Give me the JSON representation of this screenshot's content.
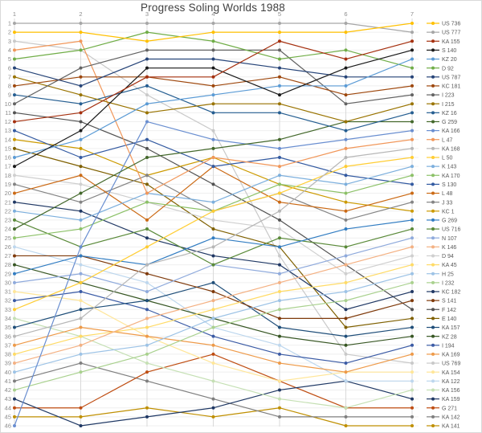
{
  "title": "Progress Soling Worlds 1988",
  "chart_data": {
    "type": "line",
    "subtype": "bump-chart",
    "title": "Progress Soling Worlds 1988",
    "xlabel": "",
    "ylabel": "",
    "x_axis": {
      "position": "top",
      "ticks": [
        1,
        2,
        3,
        4,
        5,
        6,
        7
      ],
      "label_color": "#8c8c8c"
    },
    "y_axis": {
      "min": 1,
      "max": 46,
      "inverted": true,
      "label_color": "#8c8c8c"
    },
    "grid": true,
    "legend_position": "right",
    "legend_text_color": "#595959",
    "series": [
      {
        "label": "US 736",
        "color": "#FFC000",
        "positions": [
          2,
          2,
          3,
          2,
          2,
          2,
          1
        ]
      },
      {
        "label": "US 777",
        "color": "#A6A6A6",
        "positions": [
          1,
          1,
          1,
          1,
          1,
          1,
          2
        ]
      },
      {
        "label": "KA 155",
        "color": "#A5300F",
        "positions": [
          12,
          11,
          7,
          7,
          3,
          5,
          3
        ]
      },
      {
        "label": "S 140",
        "color": "#1A1A1A",
        "positions": [
          17,
          13,
          6,
          6,
          9,
          6,
          4
        ]
      },
      {
        "label": "KZ 20",
        "color": "#5B9BD5",
        "positions": [
          16,
          14,
          10,
          9,
          8,
          8,
          5
        ]
      },
      {
        "label": "D 92",
        "color": "#70AD47",
        "positions": [
          5,
          4,
          2,
          3,
          5,
          4,
          6
        ]
      },
      {
        "label": "US 787",
        "color": "#264478",
        "positions": [
          6,
          8,
          5,
          5,
          6,
          7,
          7
        ]
      },
      {
        "label": "KC 181",
        "color": "#9E480E",
        "positions": [
          8,
          7,
          7,
          8,
          7,
          9,
          8
        ]
      },
      {
        "label": "I 223",
        "color": "#636363",
        "positions": [
          10,
          6,
          4,
          4,
          4,
          10,
          9
        ]
      },
      {
        "label": "I 215",
        "color": "#997300",
        "positions": [
          7,
          9,
          11,
          10,
          10,
          12,
          10
        ]
      },
      {
        "label": "KZ 16",
        "color": "#255E91",
        "positions": [
          9,
          10,
          8,
          11,
          11,
          13,
          11
        ]
      },
      {
        "label": "G 259",
        "color": "#43682B",
        "positions": [
          24,
          20,
          16,
          15,
          14,
          12,
          12
        ]
      },
      {
        "label": "KA 166",
        "color": "#698ED0",
        "positions": [
          46,
          26,
          12,
          14,
          15,
          14,
          13
        ]
      },
      {
        "label": "L 47",
        "color": "#F1975A",
        "positions": [
          4,
          3,
          20,
          16,
          17,
          15,
          14
        ]
      },
      {
        "label": "KA 168",
        "color": "#B7B7B7",
        "positions": [
          36,
          34,
          28,
          26,
          22,
          16,
          15
        ]
      },
      {
        "label": "L 50",
        "color": "#FFCD33",
        "positions": [
          33,
          30,
          26,
          22,
          20,
          17,
          16
        ]
      },
      {
        "label": "K 143",
        "color": "#7CAFDD",
        "positions": [
          22,
          23,
          20,
          21,
          18,
          19,
          17
        ]
      },
      {
        "label": "KA 170",
        "color": "#8CC168",
        "positions": [
          25,
          24,
          21,
          22,
          19,
          20,
          18
        ]
      },
      {
        "label": "S 130",
        "color": "#335AA1",
        "positions": [
          13,
          16,
          14,
          17,
          16,
          18,
          19
        ]
      },
      {
        "label": "L 48",
        "color": "#CB6A15",
        "positions": [
          20,
          18,
          23,
          17,
          21,
          22,
          20
        ]
      },
      {
        "label": "J 33",
        "color": "#848484",
        "positions": [
          19,
          21,
          18,
          22,
          20,
          23,
          21
        ]
      },
      {
        "label": "KC 1",
        "color": "#CC9A00",
        "positions": [
          14,
          15,
          18,
          16,
          19,
          21,
          22
        ]
      },
      {
        "label": "G 269",
        "color": "#327DC2",
        "positions": [
          29,
          27,
          28,
          25,
          26,
          24,
          23
        ]
      },
      {
        "label": "US 716",
        "color": "#5A8A39",
        "positions": [
          23,
          26,
          24,
          28,
          25,
          26,
          24
        ]
      },
      {
        "label": "N 107",
        "color": "#8FAADC",
        "positions": [
          30,
          29,
          31,
          28,
          29,
          27,
          25
        ]
      },
      {
        "label": "K 146",
        "color": "#F4B183",
        "positions": [
          39,
          37,
          34,
          32,
          30,
          28,
          26
        ]
      },
      {
        "label": "D 94",
        "color": "#CFCFCF",
        "positions": [
          18,
          19,
          21,
          23,
          24,
          29,
          27
        ]
      },
      {
        "label": "KA 45",
        "color": "#FFDB66",
        "positions": [
          38,
          36,
          35,
          33,
          31,
          30,
          28
        ]
      },
      {
        "label": "H 25",
        "color": "#9DC3E6",
        "positions": [
          40,
          38,
          37,
          34,
          32,
          31,
          29
        ]
      },
      {
        "label": "I 232",
        "color": "#A9D18E",
        "positions": [
          42,
          40,
          38,
          35,
          33,
          32,
          30
        ]
      },
      {
        "label": "KC 182",
        "color": "#203864",
        "positions": [
          21,
          22,
          25,
          27,
          28,
          33,
          31
        ]
      },
      {
        "label": "S 141",
        "color": "#7F3A0B",
        "positions": [
          27,
          27,
          29,
          31,
          34,
          34,
          32
        ]
      },
      {
        "label": "F 142",
        "color": "#525252",
        "positions": [
          11,
          12,
          15,
          19,
          23,
          28,
          33
        ]
      },
      {
        "label": "E 140",
        "color": "#7F6000",
        "positions": [
          15,
          17,
          19,
          24,
          26,
          35,
          34
        ]
      },
      {
        "label": "KA 157",
        "color": "#1F4E79",
        "positions": [
          35,
          33,
          32,
          30,
          35,
          36,
          35
        ]
      },
      {
        "label": "KZ 28",
        "color": "#375623",
        "positions": [
          28,
          30,
          32,
          34,
          36,
          37,
          36
        ]
      },
      {
        "label": "I 194",
        "color": "#3B5BA5",
        "positions": [
          32,
          31,
          33,
          36,
          38,
          39,
          37
        ]
      },
      {
        "label": "KA 169",
        "color": "#EE9A49",
        "positions": [
          37,
          35,
          36,
          37,
          39,
          40,
          38
        ]
      },
      {
        "label": "US 769",
        "color": "#C9C9C9",
        "positions": [
          3,
          4,
          9,
          13,
          27,
          38,
          39
        ]
      },
      {
        "label": "KA 154",
        "color": "#FFE699",
        "positions": [
          31,
          32,
          36,
          39,
          41,
          40,
          40
        ]
      },
      {
        "label": "KA 122",
        "color": "#BDD7EE",
        "positions": [
          26,
          28,
          30,
          35,
          37,
          41,
          41
        ]
      },
      {
        "label": "KA 156",
        "color": "#C5E0B4",
        "positions": [
          34,
          36,
          39,
          41,
          43,
          44,
          42
        ]
      },
      {
        "label": "KA 159",
        "color": "#1F3864",
        "positions": [
          43,
          46,
          45,
          44,
          42,
          41,
          43
        ]
      },
      {
        "label": "G 271",
        "color": "#BF4D12",
        "positions": [
          44,
          44,
          40,
          38,
          41,
          44,
          44
        ]
      },
      {
        "label": "KA 142",
        "color": "#7F7F7F",
        "positions": [
          41,
          39,
          41,
          43,
          45,
          45,
          45
        ]
      },
      {
        "label": "KA 141",
        "color": "#BF8F00",
        "positions": [
          45,
          45,
          44,
          45,
          44,
          46,
          46
        ]
      }
    ]
  }
}
